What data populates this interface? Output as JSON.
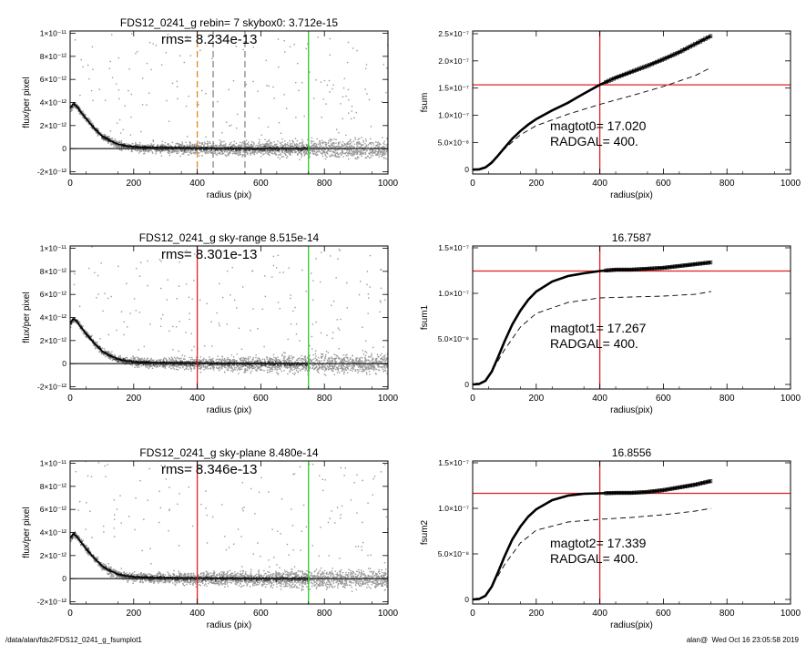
{
  "footer": {
    "path": "/data/alan/fds2/FDS12_0241_g_fsumplot1",
    "stamp": "alan@  Wed Oct 16 23:05:58 2019"
  },
  "colors": {
    "data_points": "#999999",
    "red": "#e02020",
    "green": "#20d020",
    "orange": "#e08a1e",
    "curve": "#000000"
  },
  "chart_data": [
    {
      "type": "scatter",
      "panel": "profile-1",
      "title": "FDS12_0241_g rebin= 7    skybox0:  3.712e-15",
      "annotation": "rms= 8.234e-13",
      "xlabel": "radius (pix)",
      "ylabel": "flux/per pixel",
      "xlim": [
        0,
        1000
      ],
      "ylim": [
        -2.2e-12,
        1.02e-11
      ],
      "xticks": [
        "0",
        "200",
        "400",
        "600",
        "800",
        "1000"
      ],
      "yticks": [
        {
          "value": -2e-12,
          "label": "-2×10⁻¹²"
        },
        {
          "value": 0,
          "label": "0"
        },
        {
          "value": 2e-12,
          "label": "2×10⁻¹²"
        },
        {
          "value": 4e-12,
          "label": "4×10⁻¹²"
        },
        {
          "value": 6e-12,
          "label": "6×10⁻¹²"
        },
        {
          "value": 8e-12,
          "label": "8×10⁻¹²"
        },
        {
          "value": 1e-11,
          "label": "1×10⁻¹¹"
        }
      ],
      "profile": {
        "x": [
          0,
          10,
          20,
          30,
          50,
          75,
          100,
          125,
          150,
          175,
          200,
          250,
          300,
          400,
          500,
          600,
          750
        ],
        "y": [
          3.5e-12,
          3.9e-12,
          3.7e-12,
          3.3e-12,
          2.6e-12,
          1.8e-12,
          1.1e-12,
          7e-13,
          4e-13,
          2.5e-13,
          1.6e-13,
          1e-13,
          8e-14,
          5e-14,
          3e-14,
          2e-14,
          1e-14
        ]
      },
      "vlines": [
        {
          "x": 400,
          "color": "orange",
          "dashed": true
        },
        {
          "x": 450,
          "color": "gray",
          "dashed": true
        },
        {
          "x": 550,
          "color": "gray",
          "dashed": true
        },
        {
          "x": 750,
          "color": "green",
          "dashed": false
        }
      ]
    },
    {
      "type": "line",
      "panel": "fsum-0",
      "title": "",
      "xlabel": "radius(pix)",
      "ylabel": "fsum",
      "xlim": [
        0,
        1000
      ],
      "ylim": [
        -8e-09,
        2.55e-07
      ],
      "xticks": [
        "0",
        "200",
        "400",
        "600",
        "800",
        "1000"
      ],
      "yticks": [
        {
          "value": 0,
          "label": "0"
        },
        {
          "value": 5e-08,
          "label": "5.0×10⁻⁸"
        },
        {
          "value": 1e-07,
          "label": "1.0×10⁻⁷"
        },
        {
          "value": 1.5e-07,
          "label": "1.5×10⁻⁷"
        },
        {
          "value": 2e-07,
          "label": "2.0×10⁻⁷"
        },
        {
          "value": 2.5e-07,
          "label": "2.5×10⁻⁷"
        }
      ],
      "series": [
        {
          "style": "solid",
          "x": [
            0,
            20,
            40,
            60,
            80,
            100,
            125,
            150,
            175,
            200,
            250,
            300,
            350,
            400,
            450,
            500,
            550,
            600,
            650,
            700,
            750
          ],
          "y": [
            0,
            5e-10,
            4e-09,
            1.3e-08,
            2.6e-08,
            4e-08,
            5.7e-08,
            7.1e-08,
            8.3e-08,
            9.3e-08,
            1.09e-07,
            1.23e-07,
            1.4e-07,
            1.56e-07,
            1.69e-07,
            1.8e-07,
            1.91e-07,
            2.03e-07,
            2.16e-07,
            2.31e-07,
            2.46e-07
          ]
        },
        {
          "style": "dashed",
          "x": [
            0,
            40,
            80,
            100,
            150,
            200,
            300,
            400,
            500,
            600,
            700,
            750
          ],
          "y": [
            0,
            4e-09,
            2.6e-08,
            3.8e-08,
            6.4e-08,
            8.1e-08,
            1.02e-07,
            1.2e-07,
            1.36e-07,
            1.53e-07,
            1.73e-07,
            1.88e-07
          ]
        }
      ],
      "hline": 1.56e-07,
      "vline": 400,
      "annotations": [
        "magtot0=  17.020",
        "RADGAL=    400."
      ]
    },
    {
      "type": "scatter",
      "panel": "profile-2",
      "title": "FDS12_0241_g sky-range  8.515e-14",
      "annotation": "rms= 8.301e-13",
      "xlabel": "radius (pix)",
      "ylabel": "flux/per pixel",
      "xlim": [
        0,
        1000
      ],
      "ylim": [
        -2.2e-12,
        1.02e-11
      ],
      "xticks": [
        "0",
        "200",
        "400",
        "600",
        "800",
        "1000"
      ],
      "yticks": [
        {
          "value": -2e-12,
          "label": "-2×10⁻¹²"
        },
        {
          "value": 0,
          "label": "0"
        },
        {
          "value": 2e-12,
          "label": "2×10⁻¹²"
        },
        {
          "value": 4e-12,
          "label": "4×10⁻¹²"
        },
        {
          "value": 6e-12,
          "label": "6×10⁻¹²"
        },
        {
          "value": 8e-12,
          "label": "8×10⁻¹²"
        },
        {
          "value": 1e-11,
          "label": "1×10⁻¹¹"
        }
      ],
      "profile": {
        "x": [
          0,
          10,
          20,
          30,
          50,
          75,
          100,
          125,
          150,
          175,
          200,
          250,
          300,
          400,
          500,
          600,
          750
        ],
        "y": [
          3.5e-12,
          3.9e-12,
          3.7e-12,
          3.3e-12,
          2.6e-12,
          1.8e-12,
          1.1e-12,
          7e-13,
          4e-13,
          2.5e-13,
          1.6e-13,
          1e-13,
          8e-14,
          5e-14,
          3e-14,
          2e-14,
          1e-14
        ]
      },
      "vlines": [
        {
          "x": 400,
          "color": "red",
          "dashed": false
        },
        {
          "x": 750,
          "color": "green",
          "dashed": false
        }
      ]
    },
    {
      "type": "line",
      "panel": "fsum-1",
      "title": "16.7587",
      "xlabel": "radius(pix)",
      "ylabel": "fsum1",
      "xlim": [
        0,
        1000
      ],
      "ylim": [
        -5e-09,
        1.52e-07
      ],
      "xticks": [
        "0",
        "200",
        "400",
        "600",
        "800",
        "1000"
      ],
      "yticks": [
        {
          "value": 0,
          "label": "0"
        },
        {
          "value": 5e-08,
          "label": "5.0×10⁻⁸"
        },
        {
          "value": 1e-07,
          "label": "1.0×10⁻⁷"
        },
        {
          "value": 1.5e-07,
          "label": "1.5×10⁻⁷"
        }
      ],
      "series": [
        {
          "style": "solid",
          "x": [
            0,
            20,
            40,
            60,
            80,
            100,
            125,
            150,
            175,
            200,
            250,
            300,
            350,
            400,
            450,
            500,
            550,
            600,
            650,
            700,
            750
          ],
          "y": [
            0,
            5e-10,
            4e-09,
            1.4e-08,
            3e-08,
            4.7e-08,
            6.6e-08,
            8.1e-08,
            9.3e-08,
            1.02e-07,
            1.13e-07,
            1.19e-07,
            1.22e-07,
            1.245e-07,
            1.26e-07,
            1.26e-07,
            1.27e-07,
            1.28e-07,
            1.3e-07,
            1.32e-07,
            1.34e-07
          ]
        },
        {
          "style": "dashed",
          "x": [
            0,
            40,
            80,
            100,
            150,
            200,
            300,
            400,
            500,
            600,
            700,
            750
          ],
          "y": [
            0,
            4e-09,
            2.6e-08,
            3.8e-08,
            6.3e-08,
            7.8e-08,
            9e-08,
            9.5e-08,
            9.6e-08,
            9.7e-08,
            9.9e-08,
            1.02e-07
          ]
        }
      ],
      "hline": 1.245e-07,
      "vline": 400,
      "annotations": [
        "magtot1=  17.267",
        "RADGAL=    400."
      ]
    },
    {
      "type": "scatter",
      "panel": "profile-3",
      "title": "FDS12_0241_g sky-plane  8.480e-14",
      "annotation": "rms= 8.346e-13",
      "xlabel": "radius (pix)",
      "ylabel": "flux/per pixel",
      "xlim": [
        0,
        1000
      ],
      "ylim": [
        -2.2e-12,
        1.02e-11
      ],
      "xticks": [
        "0",
        "200",
        "400",
        "600",
        "800",
        "1000"
      ],
      "yticks": [
        {
          "value": -2e-12,
          "label": "-2×10⁻¹²"
        },
        {
          "value": 0,
          "label": "0"
        },
        {
          "value": 2e-12,
          "label": "2×10⁻¹²"
        },
        {
          "value": 4e-12,
          "label": "4×10⁻¹²"
        },
        {
          "value": 6e-12,
          "label": "6×10⁻¹²"
        },
        {
          "value": 8e-12,
          "label": "8×10⁻¹²"
        },
        {
          "value": 1e-11,
          "label": "1×10⁻¹¹"
        }
      ],
      "profile": {
        "x": [
          0,
          10,
          20,
          30,
          50,
          75,
          100,
          125,
          150,
          175,
          200,
          250,
          300,
          400,
          500,
          600,
          750
        ],
        "y": [
          3.5e-12,
          3.9e-12,
          3.7e-12,
          3.3e-12,
          2.6e-12,
          1.8e-12,
          1.1e-12,
          7e-13,
          4e-13,
          2.5e-13,
          1.6e-13,
          1e-13,
          8e-14,
          5e-14,
          3e-14,
          2e-14,
          1e-14
        ]
      },
      "vlines": [
        {
          "x": 400,
          "color": "red",
          "dashed": false
        },
        {
          "x": 750,
          "color": "green",
          "dashed": false
        }
      ]
    },
    {
      "type": "line",
      "panel": "fsum-2",
      "title": "16.8556",
      "xlabel": "radius(pix)",
      "ylabel": "fsum2",
      "xlim": [
        0,
        1000
      ],
      "ylim": [
        -5e-09,
        1.52e-07
      ],
      "xticks": [
        "0",
        "200",
        "400",
        "600",
        "800",
        "1000"
      ],
      "yticks": [
        {
          "value": 0,
          "label": "0"
        },
        {
          "value": 5e-08,
          "label": "5.0×10⁻⁸"
        },
        {
          "value": 1e-07,
          "label": "1.0×10⁻⁷"
        },
        {
          "value": 1.5e-07,
          "label": "1.5×10⁻⁷"
        }
      ],
      "series": [
        {
          "style": "solid",
          "x": [
            0,
            20,
            40,
            60,
            80,
            100,
            125,
            150,
            175,
            200,
            250,
            300,
            350,
            400,
            450,
            500,
            550,
            600,
            650,
            700,
            750
          ],
          "y": [
            0,
            5e-10,
            4e-09,
            1.4e-08,
            3e-08,
            4.7e-08,
            6.6e-08,
            8e-08,
            9.1e-08,
            9.9e-08,
            1.09e-07,
            1.14e-07,
            1.16e-07,
            1.165e-07,
            1.17e-07,
            1.17e-07,
            1.18e-07,
            1.2e-07,
            1.23e-07,
            1.26e-07,
            1.3e-07
          ]
        },
        {
          "style": "dashed",
          "x": [
            0,
            40,
            80,
            100,
            150,
            200,
            300,
            400,
            500,
            600,
            700,
            750
          ],
          "y": [
            0,
            4e-09,
            2.6e-08,
            3.8e-08,
            6.2e-08,
            7.6e-08,
            8.5e-08,
            8.8e-08,
            9e-08,
            9.3e-08,
            9.7e-08,
            1e-07
          ]
        }
      ],
      "hline": 1.165e-07,
      "vline": 400,
      "annotations": [
        "magtot2=  17.339",
        "RADGAL=    400."
      ]
    }
  ]
}
